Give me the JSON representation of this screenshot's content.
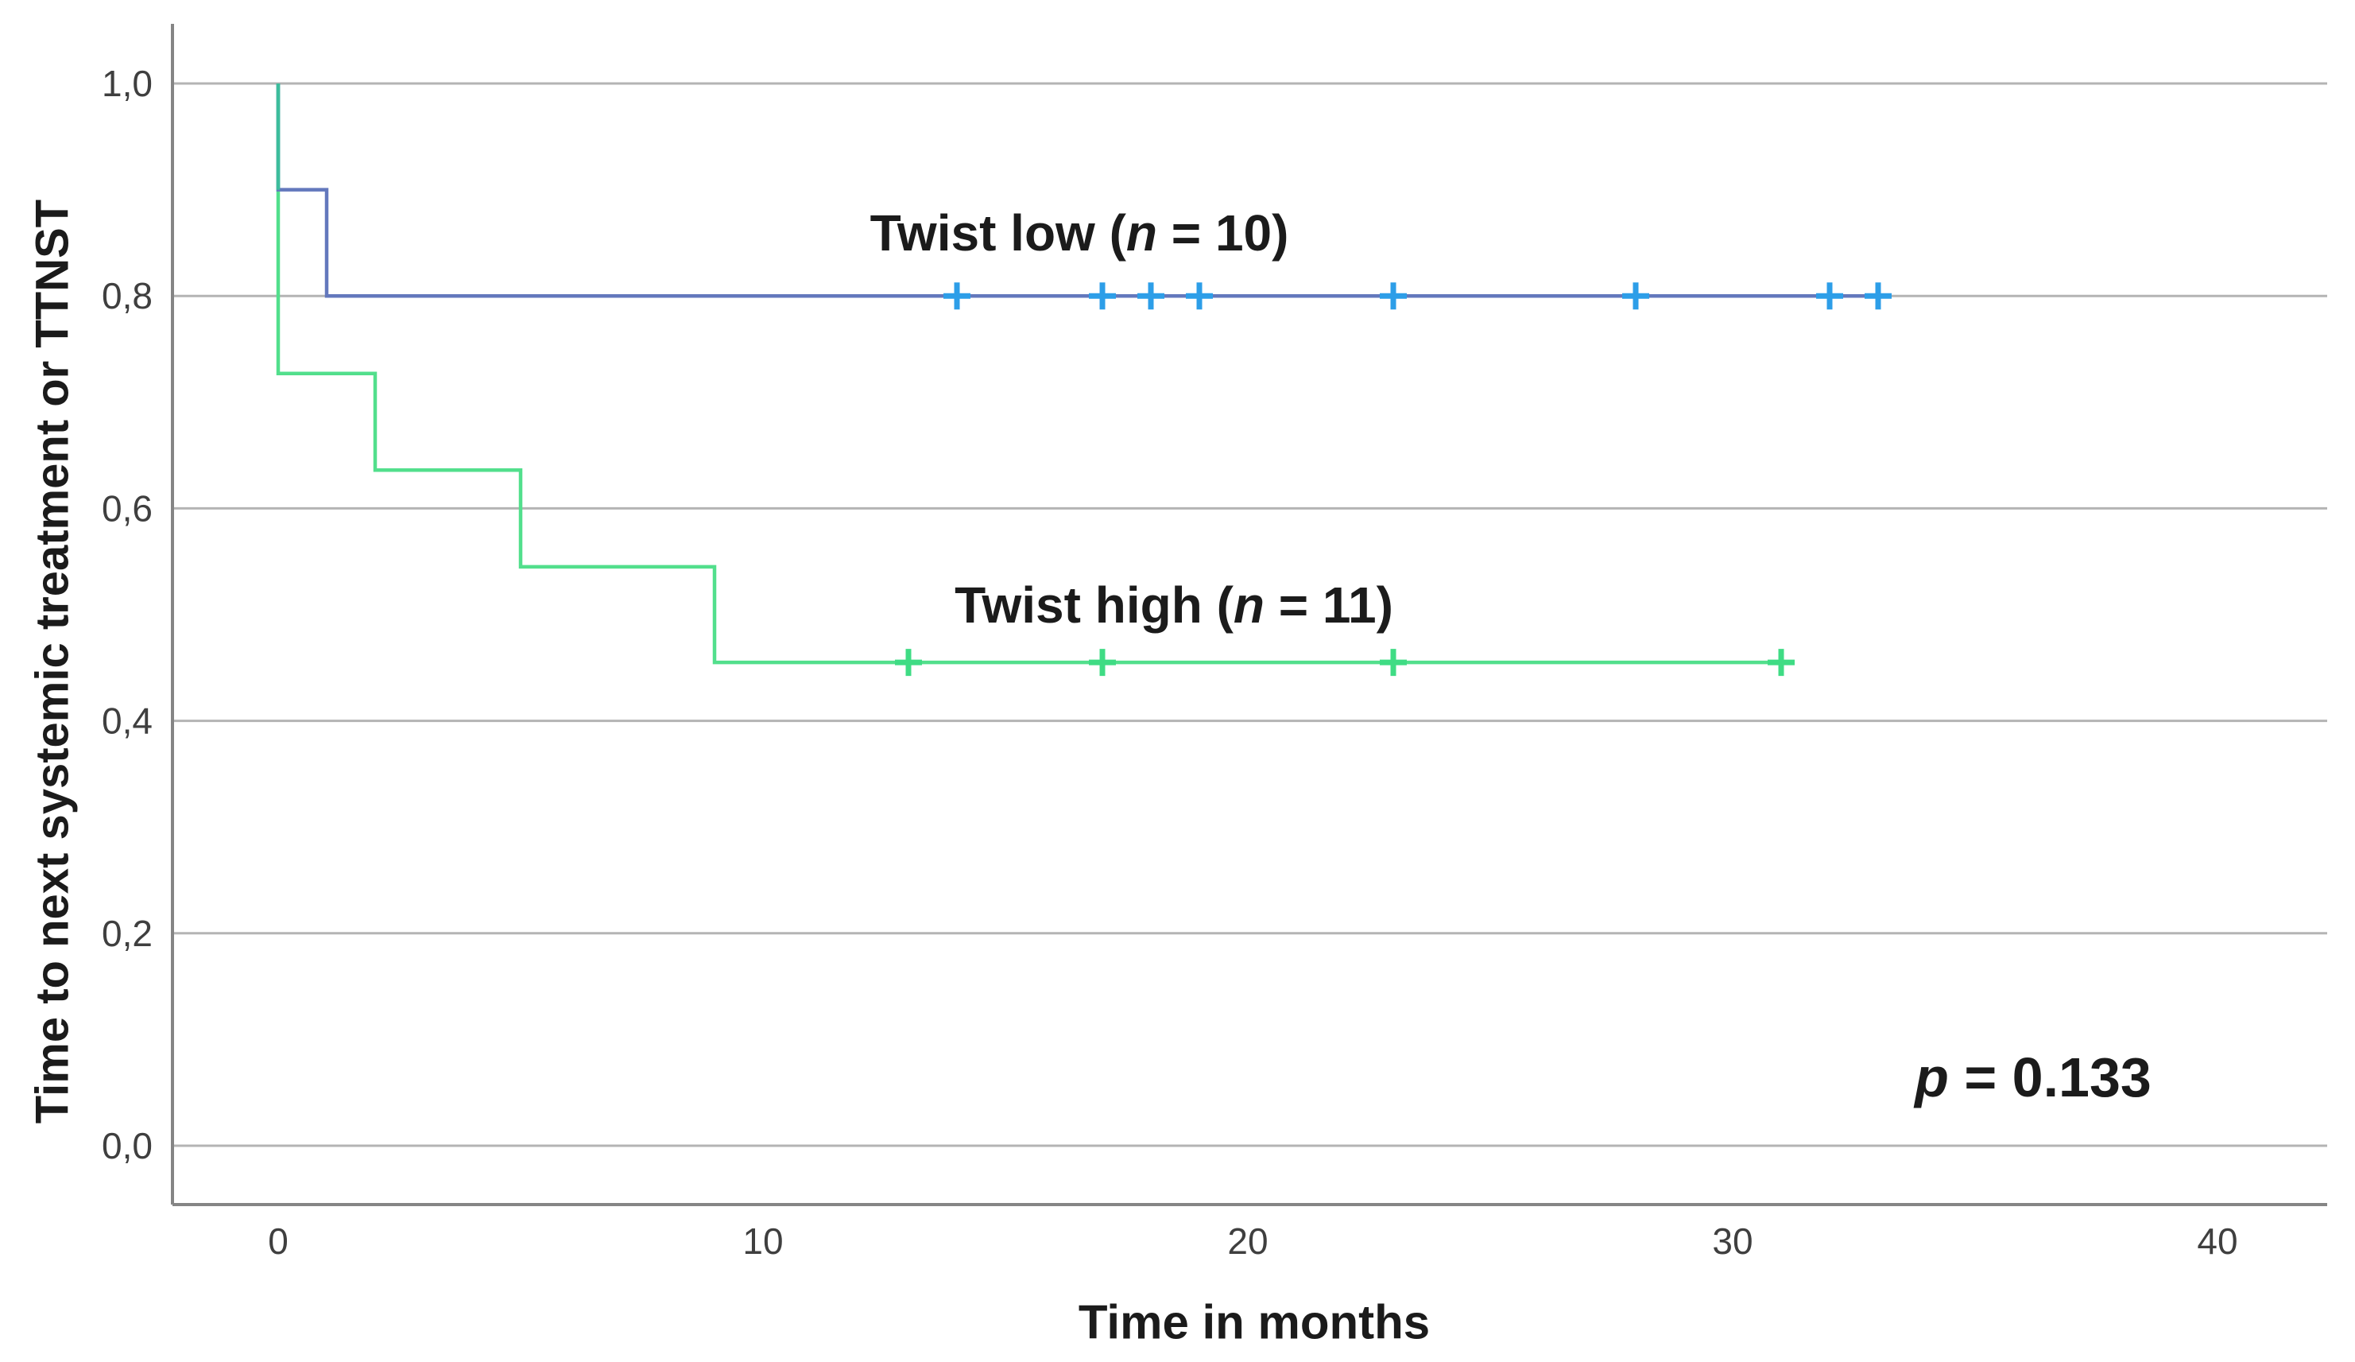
{
  "chart_data": {
    "type": "line",
    "subtype": "kaplan_meier_step",
    "title": "",
    "xlabel": "Time in months",
    "ylabel": "Time to next systemic treatment or TTNST",
    "grid": "horizontal",
    "legend_position": "inline-annotations",
    "xlim": [
      -2.2,
      42.3
    ],
    "ylim": [
      -0.055,
      1.06
    ],
    "xticks": [
      0,
      10,
      20,
      30,
      40
    ],
    "xtick_labels": [
      "0",
      "10",
      "20",
      "30",
      "40"
    ],
    "ytick_values": [
      1.0,
      0.8,
      0.6,
      0.4,
      0.2,
      0.0
    ],
    "ytick_labels": [
      "1,0",
      "0,8",
      "0,6",
      "0,4",
      "0,2",
      "0,0"
    ],
    "axis_color": "#858585",
    "gridline_color": "#b4b4b4",
    "tick_text_color": "#3f3f3f",
    "series": [
      {
        "name": "Twist low",
        "n": 10,
        "label": {
          "prefix": "Twist low (",
          "var": "n",
          "suffix": " = 10)"
        },
        "line_color": "#6378bd",
        "censor_color": "#2d9ee8",
        "overlap_color": "#3cbd9c",
        "steps": [
          [
            0,
            1.0
          ],
          [
            0,
            0.9
          ],
          [
            1,
            0.9
          ],
          [
            1,
            0.8
          ],
          [
            33.2,
            0.8
          ]
        ],
        "censor_value": 0.8,
        "censor_times": [
          14,
          17,
          18,
          19,
          23,
          28,
          32,
          33
        ]
      },
      {
        "name": "Twist high",
        "n": 11,
        "label": {
          "prefix": "Twist high (",
          "var": "n",
          "suffix": " = 11)"
        },
        "line_color": "#52df8c",
        "censor_color": "#3fdc84",
        "overlap_color": null,
        "steps": [
          [
            0,
            1.0
          ],
          [
            0,
            0.727
          ],
          [
            2,
            0.727
          ],
          [
            2,
            0.636
          ],
          [
            5,
            0.636
          ],
          [
            5,
            0.545
          ],
          [
            9,
            0.545
          ],
          [
            9,
            0.455
          ],
          [
            31.2,
            0.455
          ]
        ],
        "censor_value": 0.455,
        "censor_times": [
          13,
          17,
          23,
          31
        ]
      }
    ],
    "annotations": [
      {
        "id": "p_value",
        "prefix": "p",
        "suffix": " = 0.133",
        "x": 36.2,
        "y": 0.064
      }
    ]
  }
}
